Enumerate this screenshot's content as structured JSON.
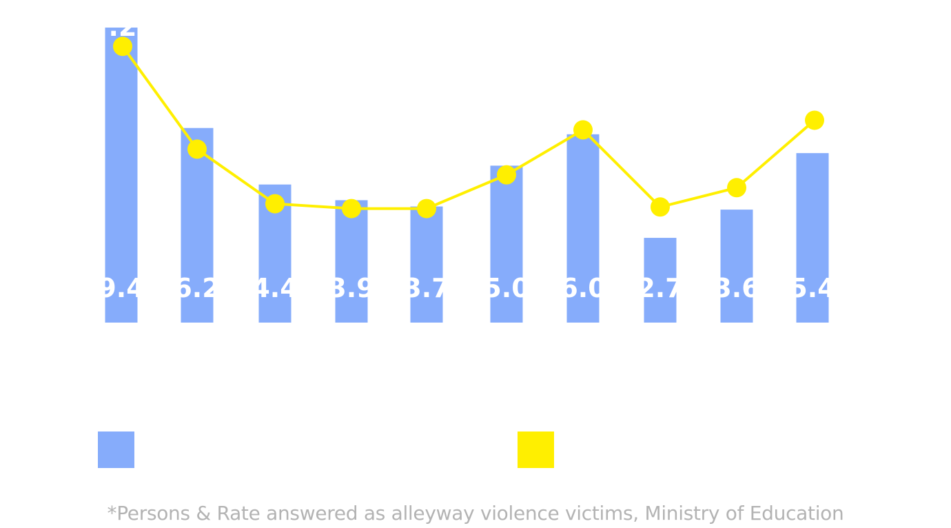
{
  "chart_data": {
    "type": "bar",
    "title": "",
    "xlabel": "",
    "ylabel": "",
    "categories": [
      "",
      "",
      "",
      "",
      "",
      "",
      "",
      "",
      "",
      ""
    ],
    "series": [
      {
        "name": "",
        "type": "bar",
        "color": "#86acfb",
        "values": [
          9.4,
          6.2,
          4.4,
          3.9,
          3.7,
          5.0,
          6.0,
          2.7,
          3.6,
          5.4
        ],
        "labels": [
          "9.4",
          "6.2",
          "4.4",
          "3.9",
          "3.7",
          "5.0",
          "6.0",
          "2.7",
          "3.6",
          "5.4"
        ]
      },
      {
        "name": "",
        "type": "line",
        "color": "#ffef00",
        "values": [
          8.6,
          5.4,
          3.7,
          3.55,
          3.55,
          4.6,
          6.0,
          3.6,
          4.2,
          6.3
        ]
      }
    ],
    "visible_line_label": ".2",
    "ylim": [
      0,
      9.4
    ]
  },
  "footnote": "*Persons & Rate answered as alleyway violence victims, Ministry of Education"
}
